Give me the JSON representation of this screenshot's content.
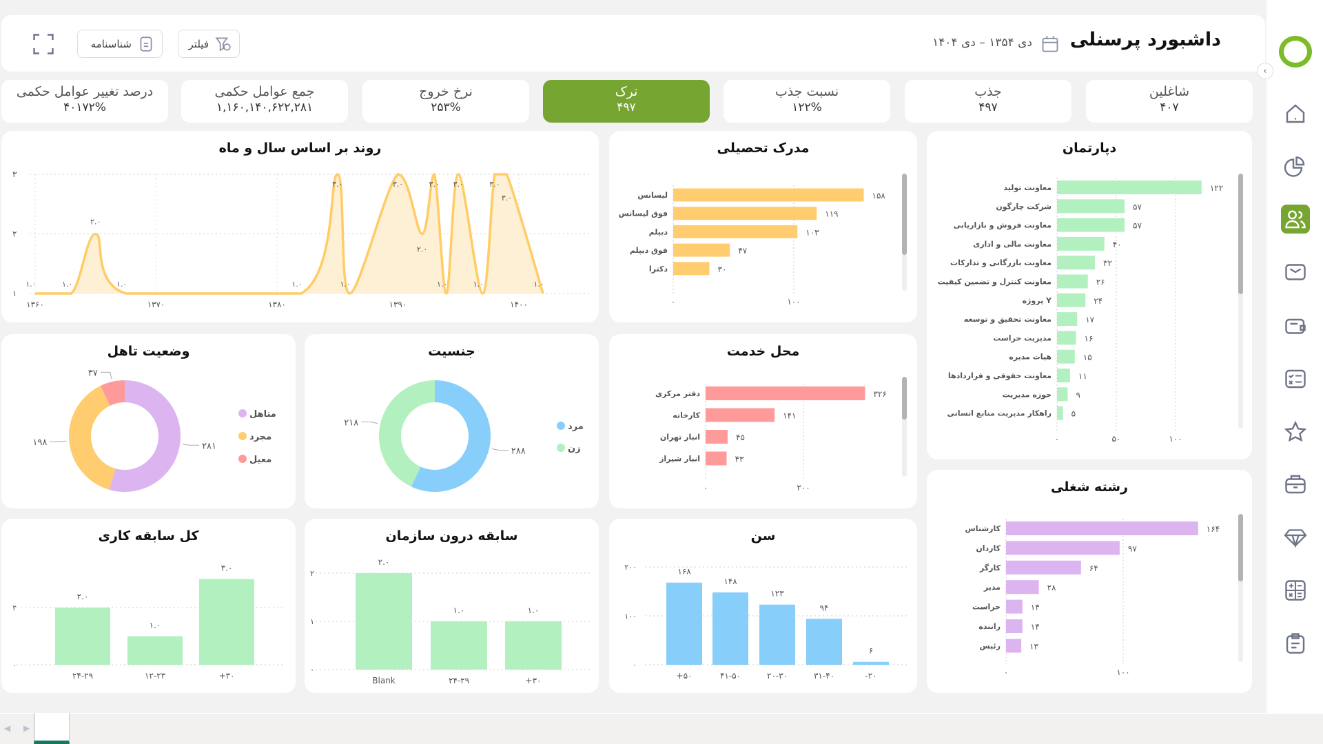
{
  "header": {
    "title": "داشبورد پرسنلی",
    "date_range": "دی ۱۳۵۴ – دی ۱۴۰۴",
    "filter_label": "فیلتر",
    "profile_label": "شناسنامه",
    "icons": {
      "calendar": "calendar-icon",
      "filter": "filter-icon",
      "profile": "document-icon",
      "expand": "expand-icon"
    }
  },
  "sidebar": {
    "items": [
      "home-icon",
      "pie-chart-icon",
      "users-icon",
      "mail-icon",
      "wallet-icon",
      "checklist-icon",
      "star-icon",
      "briefcase-icon",
      "diamond-icon",
      "calculator-icon",
      "clipboard-icon"
    ],
    "active_index": 2
  },
  "colors": {
    "accent": "#76a531",
    "logo": "#7cbb2a",
    "yellow": "#ffcc70",
    "green": "#b3f0c0",
    "pink": "#ff9a9a",
    "purple": "#dcb4f0",
    "blue": "#87cefa"
  },
  "kpis": [
    {
      "label": "شاغلین",
      "value": "۴۰۷"
    },
    {
      "label": "جذب",
      "value": "۴۹۷"
    },
    {
      "label": "نسبت جذب",
      "value": "۱۲۲%"
    },
    {
      "label": "ترک",
      "value": "۴۹۷",
      "active": true
    },
    {
      "label": "نرخ خروج",
      "value": "۲۵۳%"
    },
    {
      "label": "جمع عوامل حکمی",
      "value": "۱,۱۶۰,۱۴۰,۶۲۲,۲۸۱"
    },
    {
      "label": "درصد تغییر عوامل حکمی",
      "value": "۴۰۱۷۲%"
    }
  ],
  "chart_data": [
    {
      "id": "trend",
      "type": "area",
      "title": "روند بر اساس سال و ماه",
      "xlim": [
        1360,
        1405
      ],
      "ylim": [
        1,
        3
      ],
      "xticks": [
        1360,
        1370,
        1380,
        1390,
        1400
      ],
      "yticks": [
        1,
        2,
        3
      ],
      "grid": true,
      "points": [
        [
          1360,
          1
        ],
        [
          1363,
          1
        ],
        [
          1365,
          2
        ],
        [
          1367.5,
          1
        ],
        [
          1382,
          1
        ],
        [
          1385,
          3
        ],
        [
          1386,
          1
        ],
        [
          1390,
          3
        ],
        [
          1392,
          2
        ],
        [
          1393,
          3
        ],
        [
          1394,
          1
        ],
        [
          1395,
          3
        ],
        [
          1397,
          1
        ],
        [
          1398,
          3
        ],
        [
          1399,
          3
        ],
        [
          1402,
          1
        ]
      ]
    },
    {
      "id": "madrak",
      "type": "bar",
      "orientation": "horizontal",
      "title": "مدرک تحصیلی",
      "categories": [
        "لیسانس",
        "فوق لیسانس",
        "دیپلم",
        "فوق دیپلم",
        "دکترا"
      ],
      "values": [
        158,
        119,
        103,
        47,
        30
      ],
      "xticks": [
        0,
        100
      ],
      "color": "#ffcc70"
    },
    {
      "id": "dept",
      "type": "bar",
      "orientation": "horizontal",
      "title": "دپارتمان",
      "categories": [
        "معاونت تولید",
        "شرکت چارگون",
        "معاونت فروش و بازاریابی",
        "معاونت مالی و اداری",
        "معاونت بازرگانی و تدارکات",
        "معاونت کنترل و تضمین کیفیت",
        "پروژه Y",
        "معاونت تحقیق و توسعه",
        "مدیریت حراست",
        "هیات مدیره",
        "معاونت حقوقی و قراردادها",
        "حوزه مدیریت",
        "راهکار مدیریت منابع انسانی"
      ],
      "values": [
        122,
        57,
        57,
        40,
        32,
        26,
        24,
        17,
        16,
        15,
        11,
        9,
        5
      ],
      "xticks": [
        0,
        50,
        100
      ],
      "color": "#b3f0c0"
    },
    {
      "id": "mahal",
      "type": "bar",
      "orientation": "horizontal",
      "title": "محل خدمت",
      "categories": [
        "دفتر مرکزی",
        "کارخانه",
        "انبار تهران",
        "انبار شیراز"
      ],
      "values": [
        326,
        141,
        45,
        43
      ],
      "xticks": [
        0,
        200
      ],
      "color": "#ff9a9a"
    },
    {
      "id": "reshte",
      "type": "bar",
      "orientation": "horizontal",
      "title": "رشته شغلی",
      "categories": [
        "کارشناس",
        "کاردان",
        "کارگر",
        "مدیر",
        "حراست",
        "راننده",
        "رئیس"
      ],
      "values": [
        164,
        97,
        64,
        28,
        14,
        14,
        13
      ],
      "xticks": [
        0,
        100
      ],
      "color": "#dcb4f0"
    },
    {
      "id": "taahol",
      "type": "pie",
      "donut": true,
      "title": "وضعیت تاهل",
      "legend": "right",
      "slices": [
        {
          "name": "متاهل",
          "value": 281,
          "color": "#dcb4f0"
        },
        {
          "name": "مجرد",
          "value": 198,
          "color": "#ffcc70"
        },
        {
          "name": "معیل",
          "value": 37,
          "color": "#ff9a9a"
        }
      ]
    },
    {
      "id": "jens",
      "type": "pie",
      "donut": true,
      "title": "جنسیت",
      "legend": "right",
      "slices": [
        {
          "name": "مرد",
          "value": 288,
          "color": "#87cefa"
        },
        {
          "name": "زن",
          "value": 218,
          "color": "#b3f0c0"
        }
      ]
    },
    {
      "id": "kol",
      "type": "bar",
      "orientation": "vertical",
      "title": "کل سابقه کاری",
      "categories": [
        "۲۴-۲۹",
        "۱۲-۲۳",
        "+۳۰"
      ],
      "values": [
        2,
        1,
        3
      ],
      "yticks": [
        0,
        2
      ],
      "decimals": 1,
      "color": "#b3f0c0"
    },
    {
      "id": "saboghe",
      "type": "bar",
      "orientation": "vertical",
      "title": "سابقه درون سازمان",
      "categories": [
        "Blank",
        "۲۴-۲۹",
        "+۳۰"
      ],
      "values": [
        2,
        1,
        1
      ],
      "yticks": [
        0,
        1,
        2
      ],
      "decimals": 1,
      "color": "#b3f0c0"
    },
    {
      "id": "sen",
      "type": "bar",
      "orientation": "vertical",
      "title": "سن",
      "categories": [
        "+۵۰",
        "۴۱-۵۰",
        "۲۰-۳۰",
        "۳۱-۴۰",
        "-۲۰"
      ],
      "values": [
        168,
        148,
        123,
        94,
        6
      ],
      "yticks": [
        0,
        100,
        200
      ],
      "decimals": 0,
      "color": "#87cefa"
    }
  ]
}
